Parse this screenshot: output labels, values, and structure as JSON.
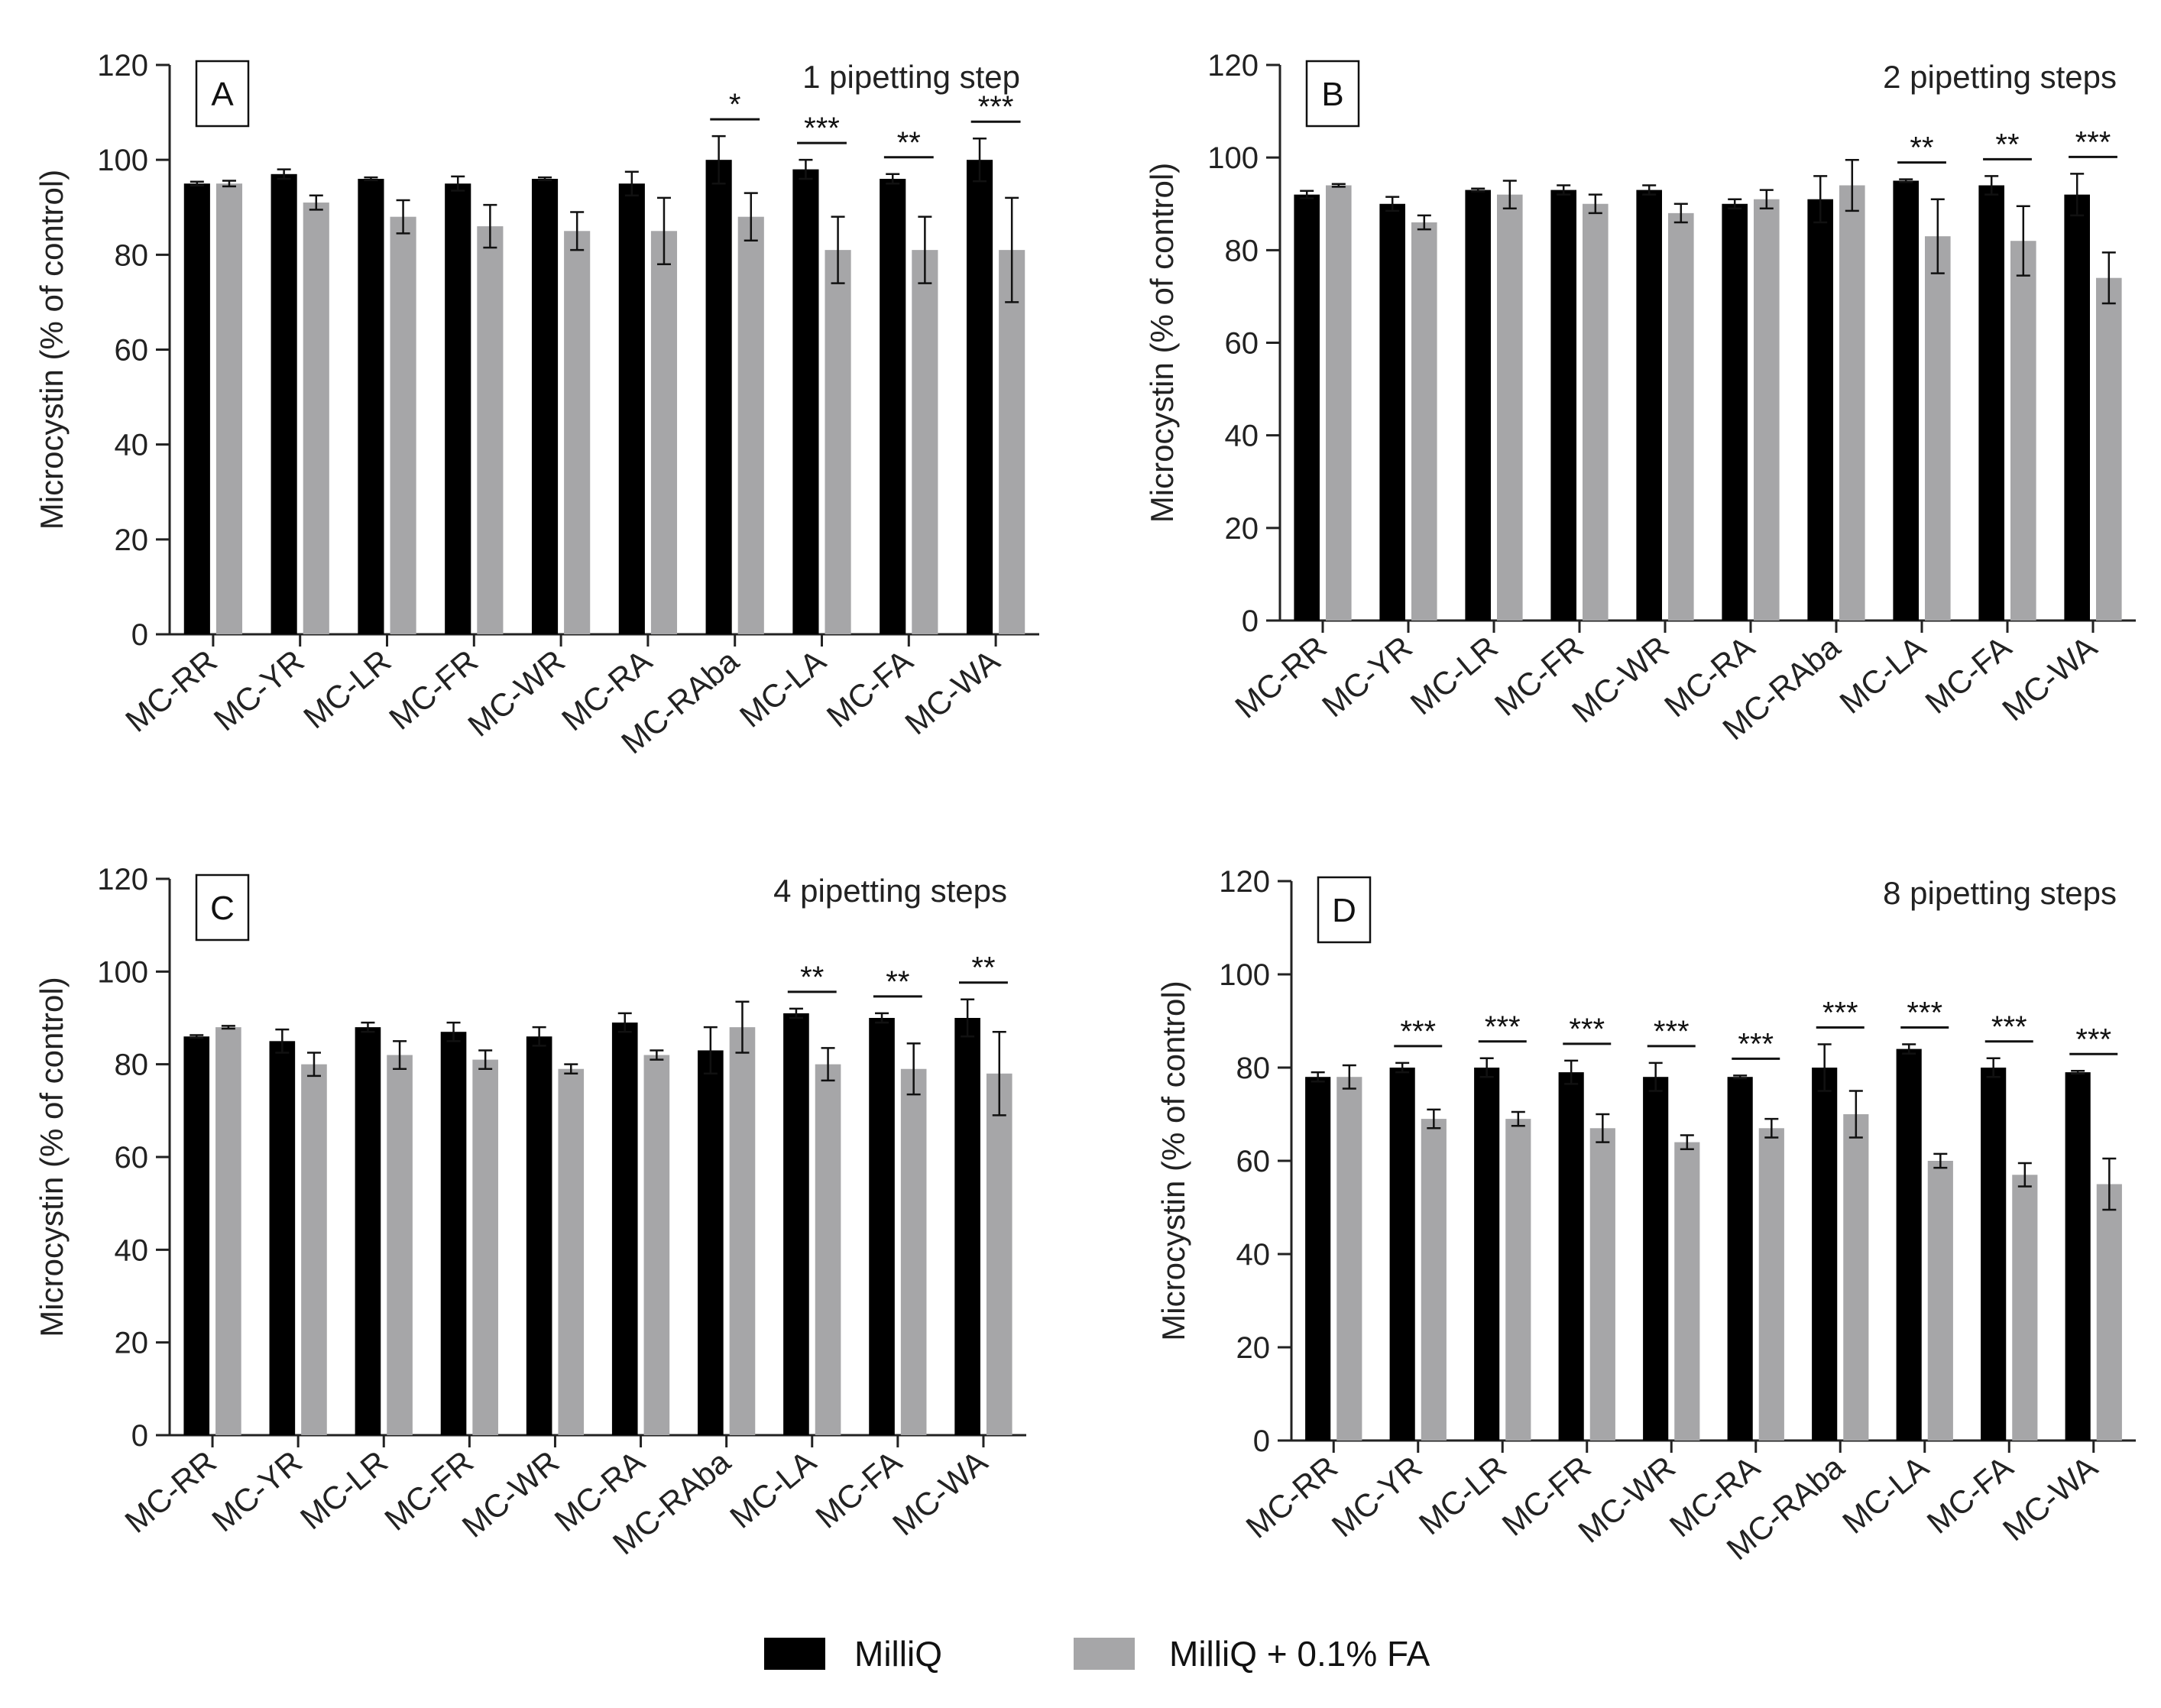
{
  "legend": {
    "items": [
      {
        "label": "MilliQ",
        "color": "#000000"
      },
      {
        "label": "MilliQ + 0.1% FA",
        "color": "#a6a6a8"
      }
    ]
  },
  "chart_data": [
    {
      "type": "bar",
      "panel_label": "A",
      "title": "1 pipetting step",
      "xlabel": "",
      "ylabel": "Microcystin  (% of control)",
      "ylim": [
        0,
        120
      ],
      "yticks": [
        "0",
        "20",
        "40",
        "60",
        "80",
        "100",
        "120"
      ],
      "categories": [
        "MC-RR",
        "MC-YR",
        "MC-LR",
        "MC-FR",
        "MC-WR",
        "MC-RA",
        "MC-RAba",
        "MC-LA",
        "MC-FA",
        "MC-WA"
      ],
      "series": [
        {
          "name": "MilliQ",
          "values": [
            95,
            97,
            96,
            95,
            96,
            95,
            100,
            98,
            96,
            100
          ],
          "errors": [
            0.4,
            1,
            0.3,
            1.5,
            0.3,
            2.5,
            5,
            2,
            1,
            4.5
          ]
        },
        {
          "name": "MilliQ + 0.1% FA",
          "values": [
            95,
            91,
            88,
            86,
            85,
            85,
            88,
            81,
            81,
            81
          ],
          "errors": [
            0.6,
            1.5,
            3.5,
            4.5,
            4,
            7,
            5,
            7,
            7,
            11
          ]
        }
      ],
      "significance": [
        "",
        "",
        "",
        "",
        "",
        "",
        "*",
        "***",
        "**",
        "***"
      ]
    },
    {
      "type": "bar",
      "panel_label": "B",
      "title": "2 pipetting steps",
      "xlabel": "",
      "ylabel": "Microcystin  (% of control)",
      "ylim": [
        0,
        120
      ],
      "yticks": [
        "0",
        "20",
        "40",
        "60",
        "80",
        "100",
        "120"
      ],
      "categories": [
        "MC-RR",
        "MC-YR",
        "MC-LR",
        "MC-FR",
        "MC-WR",
        "MC-RA",
        "MC-RAba",
        "MC-LA",
        "MC-FA",
        "MC-WA"
      ],
      "series": [
        {
          "name": "MilliQ",
          "values": [
            92,
            90,
            93,
            93,
            93,
            90,
            91,
            95,
            94,
            92
          ],
          "errors": [
            0.8,
            1.5,
            0.3,
            1,
            1,
            1,
            5,
            0.3,
            2,
            4.5
          ]
        },
        {
          "name": "MilliQ + 0.1% FA",
          "values": [
            94,
            86,
            92,
            90,
            88,
            91,
            94,
            83,
            82,
            74
          ],
          "errors": [
            0.3,
            1.5,
            3,
            2,
            2,
            2,
            5.5,
            8,
            7.5,
            5.5
          ]
        }
      ],
      "significance": [
        "",
        "",
        "",
        "",
        "",
        "",
        "",
        "**",
        "**",
        "***"
      ]
    },
    {
      "type": "bar",
      "panel_label": "C",
      "title": "4 pipetting steps",
      "xlabel": "",
      "ylabel": "Microcystin  (% of control)",
      "ylim": [
        0,
        120
      ],
      "yticks": [
        "0",
        "20",
        "40",
        "60",
        "80",
        "100",
        "120"
      ],
      "categories": [
        "MC-RR",
        "MC-YR",
        "MC-LR",
        "MC-FR",
        "MC-WR",
        "MC-RA",
        "MC-RAba",
        "MC-LA",
        "MC-FA",
        "MC-WA"
      ],
      "series": [
        {
          "name": "MilliQ",
          "values": [
            86,
            85,
            88,
            87,
            86,
            89,
            83,
            91,
            90,
            90
          ],
          "errors": [
            0.3,
            2.5,
            1,
            2,
            2,
            2,
            5,
            1,
            1,
            4
          ]
        },
        {
          "name": "MilliQ + 0.1% FA",
          "values": [
            88,
            80,
            82,
            81,
            79,
            82,
            88,
            80,
            79,
            78
          ],
          "errors": [
            0.3,
            2.5,
            3,
            2,
            1,
            1,
            5.5,
            3.5,
            5.5,
            9
          ]
        }
      ],
      "significance": [
        "",
        "",
        "",
        "",
        "",
        "",
        "",
        "**",
        "**",
        "**"
      ]
    },
    {
      "type": "bar",
      "panel_label": "D",
      "title": "8 pipetting steps",
      "xlabel": "",
      "ylabel": "Microcystin  (% of control)",
      "ylim": [
        0,
        120
      ],
      "yticks": [
        "0",
        "20",
        "40",
        "60",
        "80",
        "100",
        "120"
      ],
      "categories": [
        "MC-RR",
        "MC-YR",
        "MC-LR",
        "MC-FR",
        "MC-WR",
        "MC-RA",
        "MC-RAba",
        "MC-LA",
        "MC-FA",
        "MC-WA"
      ],
      "series": [
        {
          "name": "MilliQ",
          "values": [
            78,
            80,
            80,
            79,
            78,
            78,
            80,
            84,
            80,
            79
          ],
          "errors": [
            1,
            1,
            2,
            2.5,
            3,
            0.3,
            5,
            1,
            2,
            0.3
          ]
        },
        {
          "name": "MilliQ + 0.1% FA",
          "values": [
            78,
            69,
            69,
            67,
            64,
            67,
            70,
            60,
            57,
            55
          ],
          "errors": [
            2.5,
            2,
            1.5,
            3,
            1.5,
            2,
            5,
            1.5,
            2.5,
            5.5
          ]
        }
      ],
      "significance": [
        "",
        "***",
        "***",
        "***",
        "***",
        "***",
        "***",
        "***",
        "***",
        "***"
      ]
    }
  ]
}
